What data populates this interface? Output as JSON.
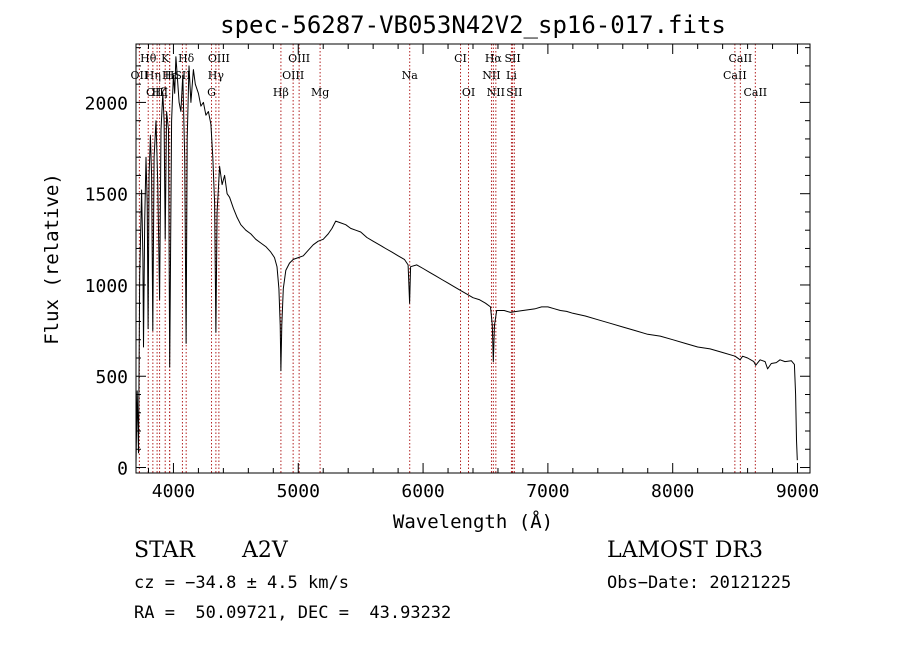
{
  "chart_data": {
    "type": "line",
    "title": "spec-56287-VB053N42V2_sp16-017.fits",
    "xlabel": "Wavelength (Å)",
    "ylabel": "Flux (relative)",
    "xlim": [
      3700,
      9100
    ],
    "ylim": [
      -30,
      2320
    ],
    "xticks": [
      4000,
      5000,
      6000,
      7000,
      8000,
      9000
    ],
    "yticks": [
      0,
      500,
      1000,
      1500,
      2000
    ],
    "line_color": "#000000",
    "marker_color": "#b22222",
    "series": [
      {
        "name": "flux",
        "points": [
          [
            3700,
            20
          ],
          [
            3710,
            420
          ],
          [
            3720,
            80
          ],
          [
            3730,
            1050
          ],
          [
            3745,
            1520
          ],
          [
            3755,
            1150
          ],
          [
            3760,
            660
          ],
          [
            3770,
            1350
          ],
          [
            3780,
            1700
          ],
          [
            3790,
            1450
          ],
          [
            3797,
            760
          ],
          [
            3805,
            1600
          ],
          [
            3815,
            1820
          ],
          [
            3825,
            1600
          ],
          [
            3835,
            750
          ],
          [
            3845,
            1700
          ],
          [
            3860,
            1900
          ],
          [
            3875,
            1550
          ],
          [
            3889,
            920
          ],
          [
            3900,
            1850
          ],
          [
            3915,
            2050
          ],
          [
            3925,
            1900
          ],
          [
            3934,
            1250
          ],
          [
            3945,
            1950
          ],
          [
            3960,
            1850
          ],
          [
            3970,
            550
          ],
          [
            3985,
            1900
          ],
          [
            4000,
            2150
          ],
          [
            4010,
            2050
          ],
          [
            4020,
            2250
          ],
          [
            4030,
            2150
          ],
          [
            4045,
            2000
          ],
          [
            4060,
            1950
          ],
          [
            4075,
            2150
          ],
          [
            4090,
            1700
          ],
          [
            4101,
            680
          ],
          [
            4110,
            1800
          ],
          [
            4125,
            2200
          ],
          [
            4140,
            2000
          ],
          [
            4160,
            2180
          ],
          [
            4175,
            2100
          ],
          [
            4200,
            2050
          ],
          [
            4220,
            1980
          ],
          [
            4240,
            2000
          ],
          [
            4260,
            1930
          ],
          [
            4280,
            1950
          ],
          [
            4300,
            1880
          ],
          [
            4315,
            1700
          ],
          [
            4330,
            1450
          ],
          [
            4340,
            740
          ],
          [
            4350,
            1400
          ],
          [
            4370,
            1650
          ],
          [
            4390,
            1550
          ],
          [
            4410,
            1600
          ],
          [
            4430,
            1500
          ],
          [
            4450,
            1480
          ],
          [
            4480,
            1420
          ],
          [
            4510,
            1370
          ],
          [
            4540,
            1330
          ],
          [
            4580,
            1300
          ],
          [
            4620,
            1280
          ],
          [
            4660,
            1250
          ],
          [
            4700,
            1230
          ],
          [
            4740,
            1210
          ],
          [
            4780,
            1180
          ],
          [
            4810,
            1150
          ],
          [
            4830,
            1100
          ],
          [
            4845,
            980
          ],
          [
            4855,
            780
          ],
          [
            4861,
            530
          ],
          [
            4868,
            780
          ],
          [
            4880,
            980
          ],
          [
            4900,
            1080
          ],
          [
            4930,
            1120
          ],
          [
            4960,
            1140
          ],
          [
            5000,
            1150
          ],
          [
            5040,
            1160
          ],
          [
            5080,
            1190
          ],
          [
            5120,
            1220
          ],
          [
            5160,
            1240
          ],
          [
            5200,
            1250
          ],
          [
            5240,
            1280
          ],
          [
            5270,
            1310
          ],
          [
            5300,
            1350
          ],
          [
            5340,
            1340
          ],
          [
            5380,
            1330
          ],
          [
            5420,
            1310
          ],
          [
            5460,
            1300
          ],
          [
            5500,
            1290
          ],
          [
            5550,
            1260
          ],
          [
            5600,
            1240
          ],
          [
            5650,
            1220
          ],
          [
            5700,
            1200
          ],
          [
            5750,
            1180
          ],
          [
            5800,
            1160
          ],
          [
            5850,
            1140
          ],
          [
            5880,
            1110
          ],
          [
            5892,
            900
          ],
          [
            5900,
            1100
          ],
          [
            5950,
            1110
          ],
          [
            6000,
            1090
          ],
          [
            6050,
            1070
          ],
          [
            6100,
            1050
          ],
          [
            6150,
            1030
          ],
          [
            6200,
            1010
          ],
          [
            6250,
            990
          ],
          [
            6300,
            970
          ],
          [
            6350,
            950
          ],
          [
            6400,
            930
          ],
          [
            6450,
            920
          ],
          [
            6500,
            900
          ],
          [
            6540,
            880
          ],
          [
            6555,
            780
          ],
          [
            6563,
            580
          ],
          [
            6572,
            780
          ],
          [
            6590,
            860
          ],
          [
            6650,
            860
          ],
          [
            6700,
            850
          ],
          [
            6750,
            855
          ],
          [
            6800,
            860
          ],
          [
            6850,
            865
          ],
          [
            6900,
            870
          ],
          [
            6950,
            880
          ],
          [
            7000,
            880
          ],
          [
            7050,
            870
          ],
          [
            7100,
            860
          ],
          [
            7150,
            855
          ],
          [
            7200,
            845
          ],
          [
            7300,
            830
          ],
          [
            7400,
            810
          ],
          [
            7500,
            790
          ],
          [
            7600,
            770
          ],
          [
            7700,
            750
          ],
          [
            7800,
            730
          ],
          [
            7900,
            720
          ],
          [
            8000,
            700
          ],
          [
            8100,
            680
          ],
          [
            8200,
            660
          ],
          [
            8300,
            650
          ],
          [
            8400,
            630
          ],
          [
            8500,
            610
          ],
          [
            8540,
            590
          ],
          [
            8560,
            610
          ],
          [
            8600,
            600
          ],
          [
            8650,
            580
          ],
          [
            8665,
            560
          ],
          [
            8700,
            590
          ],
          [
            8740,
            580
          ],
          [
            8760,
            540
          ],
          [
            8790,
            570
          ],
          [
            8830,
            575
          ],
          [
            8860,
            590
          ],
          [
            8900,
            580
          ],
          [
            8950,
            585
          ],
          [
            8975,
            565
          ],
          [
            8985,
            400
          ],
          [
            8992,
            150
          ],
          [
            8998,
            40
          ]
        ]
      }
    ],
    "lines": [
      {
        "label": "Hθ",
        "wavelength": 3798,
        "row": 1
      },
      {
        "label": "K",
        "wavelength": 3934,
        "row": 1
      },
      {
        "label": "Hδ",
        "wavelength": 4102,
        "row": 1
      },
      {
        "label": "OIII",
        "wavelength": 4364,
        "row": 1
      },
      {
        "label": "OIII",
        "wavelength": 5007,
        "row": 1
      },
      {
        "label": "CI",
        "wavelength": 6300,
        "row": 1
      },
      {
        "label": "Hα",
        "wavelength": 6563,
        "row": 1
      },
      {
        "label": "SII",
        "wavelength": 6717,
        "row": 1
      },
      {
        "label": "CaII",
        "wavelength": 8542,
        "row": 1
      },
      {
        "label": "OII",
        "wavelength": 3727,
        "row": 2
      },
      {
        "label": "Hη",
        "wavelength": 3835,
        "row": 2
      },
      {
        "label": "H",
        "wavelength": 3969,
        "row": 2
      },
      {
        "label": "Hε",
        "wavelength": 3970,
        "row": 2
      },
      {
        "label": "SII",
        "wavelength": 4072,
        "row": 2
      },
      {
        "label": "Hγ",
        "wavelength": 4340,
        "row": 2
      },
      {
        "label": "OIII",
        "wavelength": 4959,
        "row": 2
      },
      {
        "label": "Na",
        "wavelength": 5893,
        "row": 2
      },
      {
        "label": "NII",
        "wavelength": 6548,
        "row": 2
      },
      {
        "label": "Li",
        "wavelength": 6708,
        "row": 2
      },
      {
        "label": "CaII",
        "wavelength": 8498,
        "row": 2
      },
      {
        "label": "OIII",
        "wavelength": 3869,
        "row": 3
      },
      {
        "label": "Hζ",
        "wavelength": 3889,
        "row": 3
      },
      {
        "label": "G",
        "wavelength": 4305,
        "row": 3
      },
      {
        "label": "Hβ",
        "wavelength": 4861,
        "row": 3
      },
      {
        "label": "Mg",
        "wavelength": 5175,
        "row": 3
      },
      {
        "label": "OI",
        "wavelength": 6364,
        "row": 3
      },
      {
        "label": "NII",
        "wavelength": 6583,
        "row": 3
      },
      {
        "label": "SII",
        "wavelength": 6731,
        "row": 3
      },
      {
        "label": "CaII",
        "wavelength": 8662,
        "row": 3
      }
    ]
  },
  "info": {
    "class_label": "STAR",
    "subclass": "A2V",
    "survey": "LAMOST DR3",
    "cz": "cz = −34.8 ± 4.5 km/s",
    "obs_date": "Obs−Date: 20121225",
    "coords": "RA =  50.09721, DEC =  43.93232"
  }
}
